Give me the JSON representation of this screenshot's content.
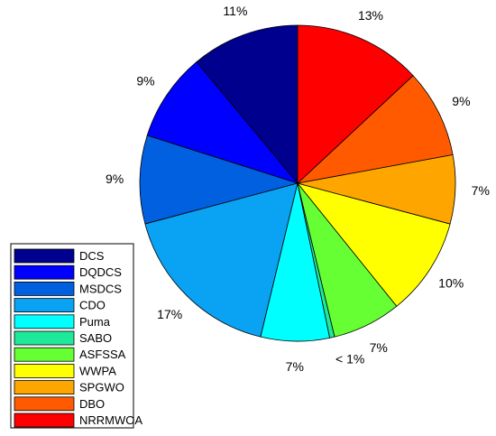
{
  "chart_data": {
    "type": "pie",
    "title": "",
    "legend_position": "bottom-left",
    "slices": [
      {
        "name": "DCS",
        "value": 11,
        "label": "11%",
        "color": "#00008f"
      },
      {
        "name": "DQDCS",
        "value": 9,
        "label": "9%",
        "color": "#0000ff"
      },
      {
        "name": "MSDCS",
        "value": 9,
        "label": "9%",
        "color": "#0060e0"
      },
      {
        "name": "CDO",
        "value": 17,
        "label": "17%",
        "color": "#0aa2f2"
      },
      {
        "name": "Puma",
        "value": 7,
        "label": "7%",
        "color": "#00ffff"
      },
      {
        "name": "SABO",
        "value": 0.5,
        "label": "< 1%",
        "color": "#1ee89a"
      },
      {
        "name": "ASFSSA",
        "value": 7,
        "label": "7%",
        "color": "#66ff33"
      },
      {
        "name": "WWPA",
        "value": 10,
        "label": "10%",
        "color": "#ffff00"
      },
      {
        "name": "SPGWO",
        "value": 7,
        "label": "7%",
        "color": "#ffa500"
      },
      {
        "name": "DBO",
        "value": 9,
        "label": "9%",
        "color": "#ff5a00"
      },
      {
        "name": "NRRMWOA",
        "value": 13,
        "label": "13%",
        "color": "#ff0000"
      }
    ]
  }
}
